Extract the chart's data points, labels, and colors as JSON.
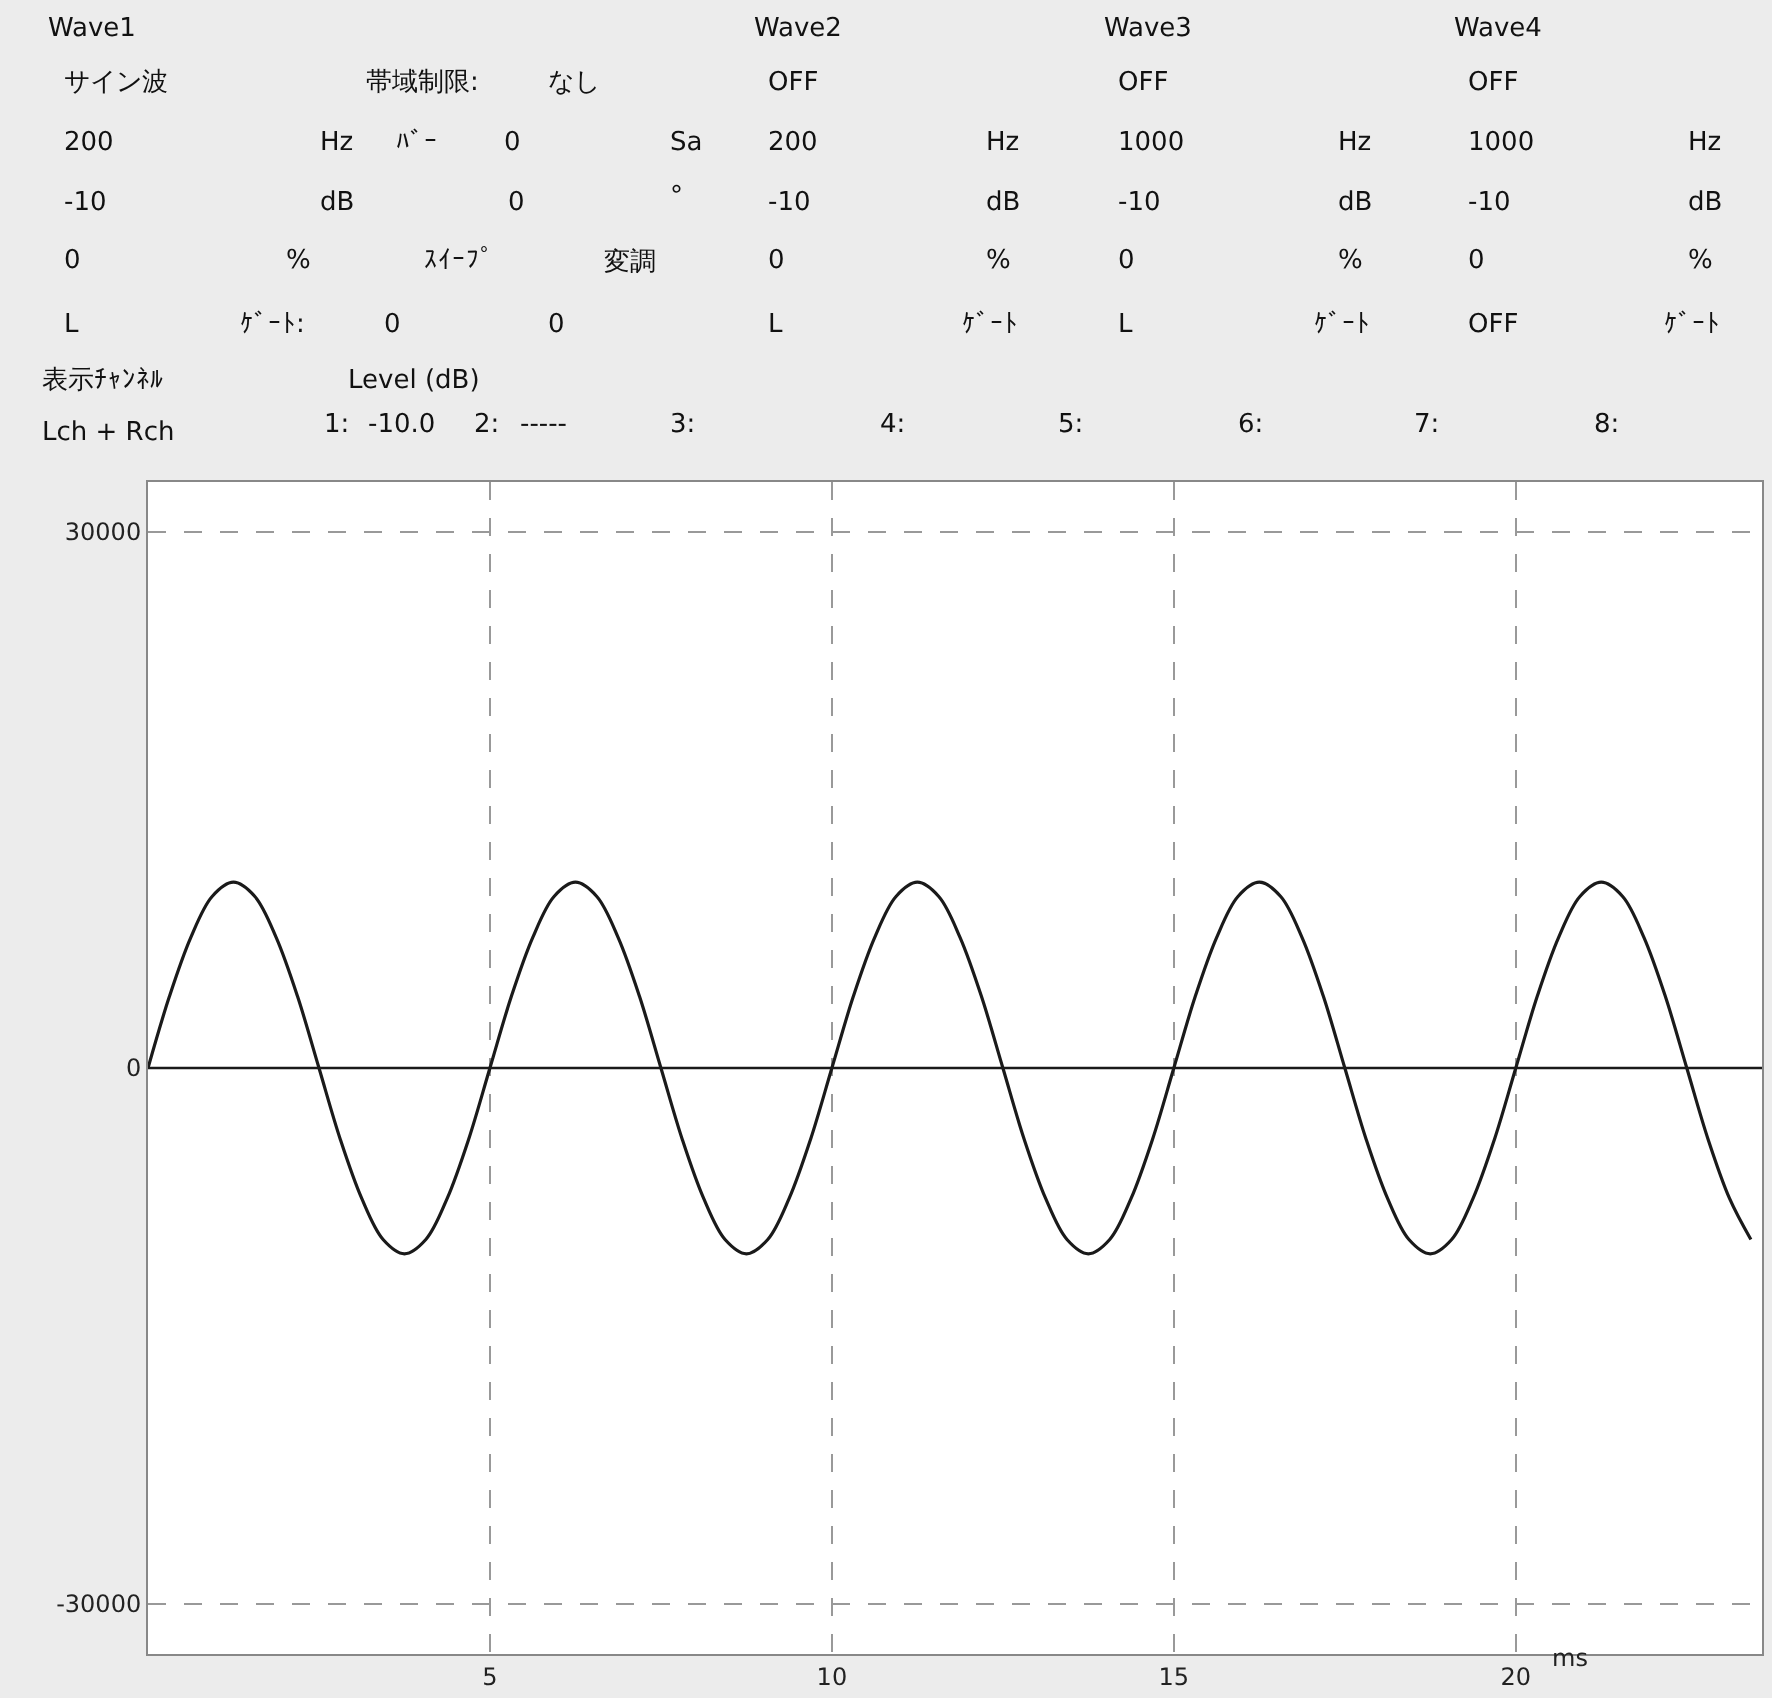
{
  "chart_data": {
    "type": "line",
    "xlabel": "ms",
    "x": [
      0,
      0.3125,
      0.625,
      0.9375,
      1.25,
      1.5625,
      1.875,
      2.1875,
      2.5,
      2.8125,
      3.125,
      3.4375,
      3.75,
      4.0625,
      4.375,
      4.6875,
      5,
      5.3125,
      5.625,
      5.9375,
      6.25,
      6.5625,
      6.875,
      7.1875,
      7.5,
      7.8125,
      8.125,
      8.4375,
      8.75,
      9.0625,
      9.375,
      9.6875,
      10,
      10.3125,
      10.625,
      10.9375,
      11.25,
      11.5625,
      11.875,
      12.1875,
      12.5,
      12.8125,
      13.125,
      13.4375,
      13.75,
      14.0625,
      14.375,
      14.6875,
      15,
      15.3125,
      15.625,
      15.9375,
      16.25,
      16.5625,
      16.875,
      17.1875,
      17.5,
      17.8125,
      18.125,
      18.4375,
      18.75,
      19.0625,
      19.375,
      19.6875,
      20,
      20.3125,
      20.625,
      20.9375,
      21.25,
      21.5625,
      21.875,
      22.1875,
      22.5,
      22.8125,
      23.125,
      23.4375
    ],
    "series": [
      {
        "color": "#1a1a1a",
        "values": [
          0,
          4000,
          7300,
          9600,
          10400,
          9600,
          7300,
          4000,
          0,
          -4000,
          -7300,
          -9600,
          -10400,
          -9600,
          -7300,
          -4000,
          0,
          4000,
          7300,
          9600,
          10400,
          9600,
          7300,
          4000,
          0,
          -4000,
          -7300,
          -9600,
          -10400,
          -9600,
          -7300,
          -4000,
          0,
          4000,
          7300,
          9600,
          10400,
          9600,
          7300,
          4000,
          0,
          -4000,
          -7300,
          -9600,
          -10400,
          -9600,
          -7300,
          -4000,
          0,
          4000,
          7300,
          9600,
          10400,
          9600,
          7300,
          4000,
          0,
          -4000,
          -7300,
          -9600,
          -10400,
          -9600,
          -7300,
          -4000,
          0,
          4000,
          7300,
          9600,
          10400,
          9600,
          7300,
          4000,
          0,
          -4000,
          -7300,
          -9600
        ]
      }
    ],
    "xlim": [
      0,
      23.6
    ],
    "ylim": [
      -32800,
      32800
    ],
    "xticks": [
      5,
      10,
      15,
      20
    ],
    "yticks": [
      -30000,
      0,
      30000
    ],
    "grid": true,
    "marker": "none",
    "line_style": "solid",
    "ref_lines": [
      {
        "axis": "y",
        "value": 0,
        "color": "#1a1a1a"
      }
    ],
    "annotations": [
      "Wave1",
      "サイン波",
      "帯域制限:",
      "なし",
      "200",
      "Hz",
      "ﾊﾞｰ",
      "0",
      "Sa",
      "-10",
      "dB",
      "0",
      "°",
      "0",
      "%",
      "ｽｲｰﾌﾟ",
      "変調",
      "L",
      "ｹﾞｰﾄ:",
      "0",
      "0",
      "Wave2",
      "OFF",
      "200",
      "Hz",
      "-10",
      "dB",
      "0",
      "%",
      "L",
      "ｹﾞｰﾄ",
      "Wave3",
      "OFF",
      "1000",
      "Hz",
      "-10",
      "dB",
      "0",
      "%",
      "L",
      "ｹﾞｰﾄ",
      "Wave4",
      "OFF",
      "1000",
      "Hz",
      "-10",
      "dB",
      "0",
      "%",
      "OFF",
      "ｹﾞｰﾄ",
      "表示ﾁｬﾝﾈﾙ",
      "Lch + Rch",
      "Level (dB)",
      "1:",
      "-10.0",
      "2:",
      "-----",
      "3:",
      "4:",
      "5:",
      "6:",
      "7:",
      "8:"
    ]
  }
}
